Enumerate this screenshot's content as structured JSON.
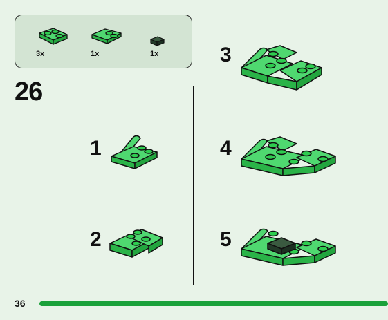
{
  "parts": [
    {
      "name": "L-plate",
      "qty": "3x"
    },
    {
      "name": "plate-with-handle",
      "qty": "1x"
    },
    {
      "name": "dark-tile",
      "qty": "1x"
    }
  ],
  "step": "26",
  "substeps": [
    "1",
    "2",
    "3",
    "4",
    "5"
  ],
  "page_number": "36",
  "colors": {
    "background": "#e8f3e8",
    "parts_box": "#d3e4d3",
    "brick_green": "#2ecc4f",
    "brick_dark": "#2c4a34",
    "progress": "#1aa13a"
  }
}
